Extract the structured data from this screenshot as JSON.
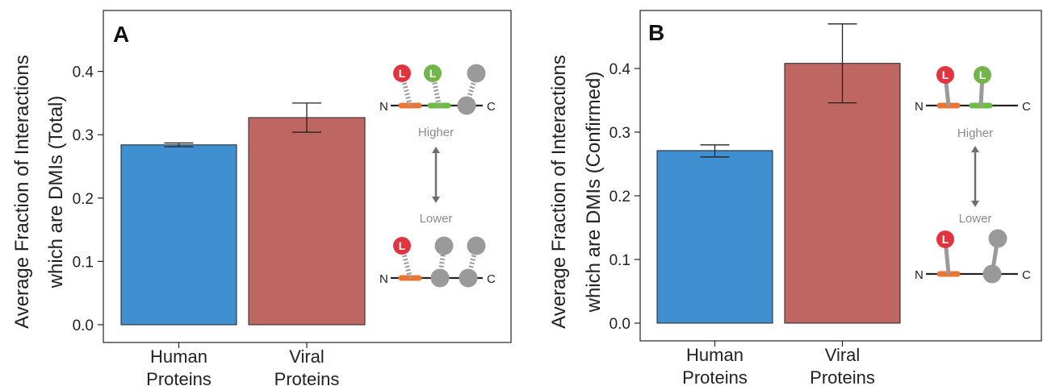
{
  "chart_data": [
    {
      "panel": "A",
      "type": "bar",
      "ylabel": [
        "Average Fraction of Interactions",
        "which are DMIs (Total)"
      ],
      "ylim": [
        0,
        0.46
      ],
      "yticks": [
        "0.0",
        "0.1",
        "0.2",
        "0.3",
        "0.4"
      ],
      "categories": [
        [
          "Human",
          "Proteins"
        ],
        [
          "Viral",
          "Proteins"
        ]
      ],
      "values": [
        0.284,
        0.327
      ],
      "err_low": [
        0.281,
        0.304
      ],
      "err_high": [
        0.287,
        0.35
      ],
      "colors": [
        "#3f8fd1",
        "#bf6663"
      ],
      "schematic": {
        "higher": "Higher",
        "lower": "Lower",
        "n": "N",
        "c": "C",
        "l": "L"
      }
    },
    {
      "panel": "B",
      "type": "bar",
      "ylabel": [
        "Average Fraction of Interactions",
        "which are DMIs (Confirmed)"
      ],
      "ylim": [
        0,
        0.5
      ],
      "yticks": [
        "0.0",
        "0.1",
        "0.2",
        "0.3",
        "0.4"
      ],
      "categories": [
        [
          "Human",
          "Proteins"
        ],
        [
          "Viral",
          "Proteins"
        ]
      ],
      "values": [
        0.271,
        0.408
      ],
      "err_low": [
        0.261,
        0.346
      ],
      "err_high": [
        0.28,
        0.47
      ],
      "colors": [
        "#3f8fd1",
        "#bf6663"
      ],
      "schematic": {
        "higher": "Higher",
        "lower": "Lower",
        "n": "N",
        "c": "C",
        "l": "L"
      }
    }
  ],
  "colors": {
    "motif_red": "#e03540",
    "motif_green": "#72b54a",
    "domain_gray": "#9a9a9a",
    "site_orange": "#ea7433",
    "site_green": "#6cbd45",
    "label_gray": "#8a8a8a"
  }
}
